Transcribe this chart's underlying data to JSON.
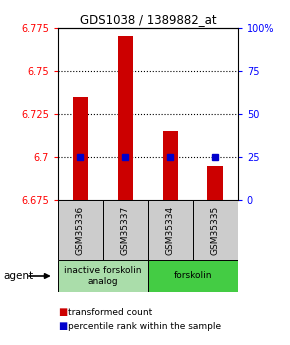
{
  "title": "GDS1038 / 1389882_at",
  "categories": [
    "GSM35336",
    "GSM35337",
    "GSM35334",
    "GSM35335"
  ],
  "bar_values": [
    6.735,
    6.77,
    6.715,
    6.695
  ],
  "bar_base": 6.675,
  "dot_values": [
    6.7,
    6.7,
    6.7,
    6.7
  ],
  "ylim": [
    6.675,
    6.775
  ],
  "y_ticks_left": [
    6.675,
    6.7,
    6.725,
    6.75,
    6.775
  ],
  "y_ticks_right_labels": [
    "0",
    "25",
    "50",
    "75",
    "100%"
  ],
  "bar_color": "#cc0000",
  "dot_color": "#0000cc",
  "agent_groups": [
    {
      "label": "inactive forskolin\nanalog",
      "span": [
        0,
        2
      ],
      "color": "#aaddaa"
    },
    {
      "label": "forskolin",
      "span": [
        2,
        4
      ],
      "color": "#44cc44"
    }
  ],
  "sample_box_color": "#cccccc",
  "legend_bar_label": "transformed count",
  "legend_dot_label": "percentile rank within the sample",
  "figsize": [
    2.9,
    3.45
  ],
  "dpi": 100
}
